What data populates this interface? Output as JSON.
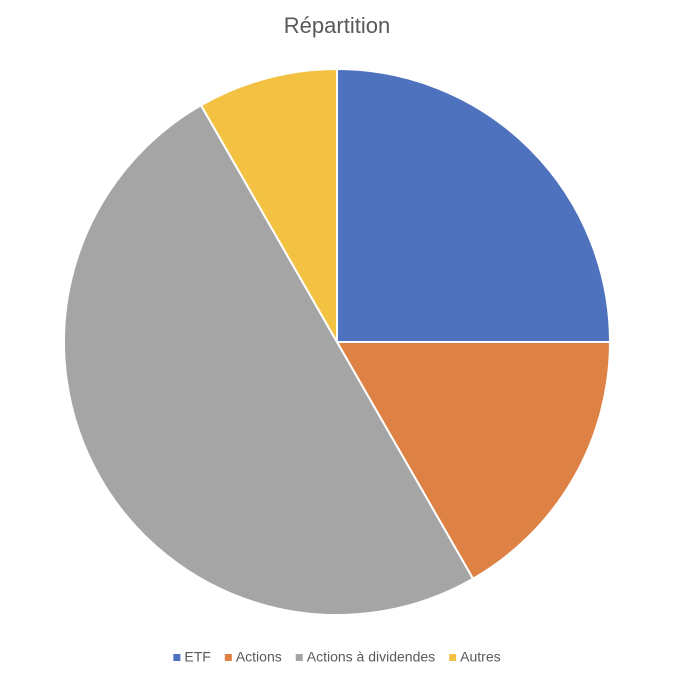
{
  "chart_data": {
    "type": "pie",
    "title": "Répartition",
    "categories": [
      "ETF",
      "Actions",
      "Actions à dividendes",
      "Autres"
    ],
    "values": [
      25,
      16.7,
      50,
      8.3
    ],
    "colors": [
      "#4f72be",
      "#dd8244",
      "#a5a5a5",
      "#f4c243"
    ],
    "legend": "bottom"
  }
}
